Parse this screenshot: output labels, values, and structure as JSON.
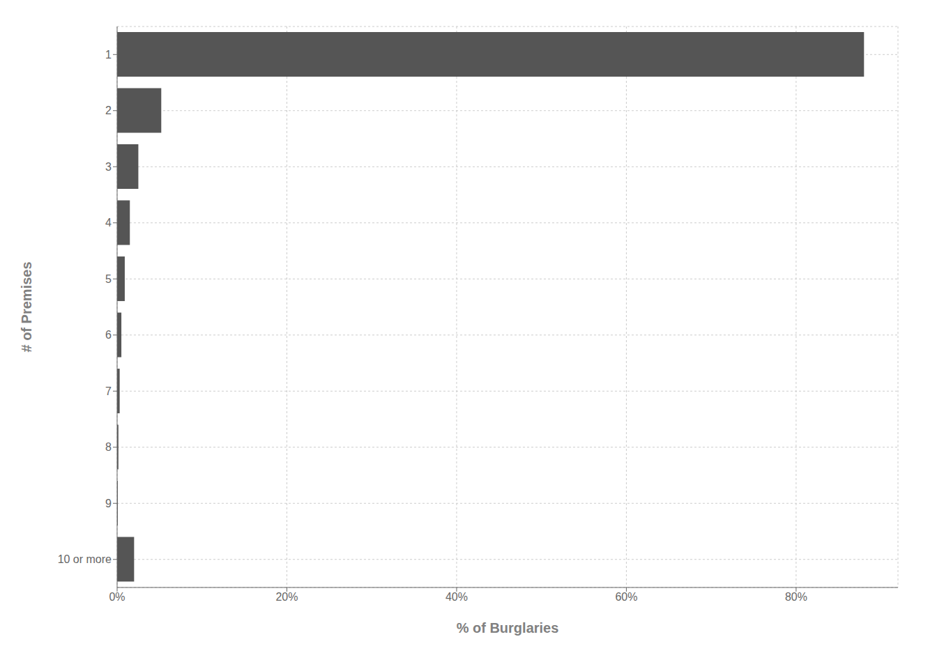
{
  "chart_data": {
    "type": "bar",
    "orientation": "horizontal",
    "categories": [
      "1",
      "2",
      "3",
      "4",
      "5",
      "6",
      "7",
      "8",
      "9",
      "10 or more"
    ],
    "values": [
      88.0,
      5.2,
      2.5,
      1.5,
      0.9,
      0.5,
      0.3,
      0.15,
      0.08,
      2.0
    ],
    "color": "#555555",
    "xlabel": "% of Burglaries",
    "ylabel": "# of Premises",
    "xlim": [
      0,
      92
    ],
    "xticks": [
      {
        "value": 0,
        "label": "0%"
      },
      {
        "value": 20,
        "label": "20%"
      },
      {
        "value": 40,
        "label": "40%"
      },
      {
        "value": 60,
        "label": "60%"
      },
      {
        "value": 80,
        "label": "80%"
      }
    ],
    "grid": true
  }
}
